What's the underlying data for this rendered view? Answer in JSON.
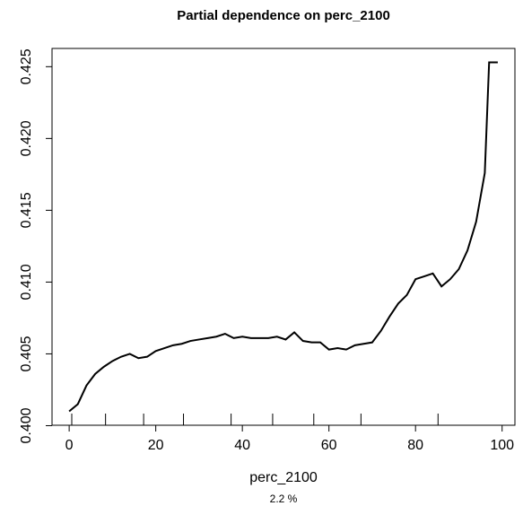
{
  "chart_data": {
    "type": "line",
    "title": "Partial dependence on perc_2100",
    "x_label": "perc_2100",
    "subtitle": "2.2 %",
    "x": [
      0,
      2,
      4,
      6,
      8,
      10,
      12,
      14,
      16,
      18,
      20,
      22,
      24,
      26,
      28,
      30,
      32,
      34,
      36,
      38,
      40,
      42,
      44,
      46,
      48,
      50,
      52,
      54,
      56,
      58,
      60,
      62,
      64,
      66,
      68,
      70,
      72,
      74,
      76,
      78,
      80,
      82,
      84,
      86,
      88,
      90,
      92,
      94,
      96,
      97,
      99
    ],
    "series": [
      {
        "name": "perc_2100",
        "color": "#000000",
        "values": [
          0.401,
          0.4015,
          0.4028,
          0.4036,
          0.4041,
          0.4045,
          0.4048,
          0.405,
          0.4047,
          0.4048,
          0.4052,
          0.4054,
          0.4056,
          0.4057,
          0.4059,
          0.406,
          0.4061,
          0.4062,
          0.4064,
          0.4061,
          0.4062,
          0.4061,
          0.4061,
          0.4061,
          0.4062,
          0.406,
          0.4065,
          0.4059,
          0.4058,
          0.4058,
          0.4053,
          0.4054,
          0.4053,
          0.4056,
          0.4057,
          0.4058,
          0.4066,
          0.4076,
          0.4085,
          0.4091,
          0.4102,
          0.4104,
          0.4106,
          0.4097,
          0.4102,
          0.4109,
          0.4122,
          0.4142,
          0.4176,
          0.4253,
          0.4253
        ]
      }
    ],
    "rug": [
      0.6,
      8.4,
      17.2,
      26.4,
      37.4,
      47.0,
      56.5,
      67.4,
      85.2
    ],
    "xlim": [
      -3.96,
      102.96
    ],
    "xticks": [
      0,
      20,
      40,
      60,
      80,
      100
    ],
    "ylim": [
      0.40003,
      0.42627
    ],
    "yticks": [
      {
        "value": 0.4,
        "label": "0.400"
      },
      {
        "value": 0.405,
        "label": "0.405"
      },
      {
        "value": 0.41,
        "label": "0.410"
      },
      {
        "value": 0.415,
        "label": "0.415"
      },
      {
        "value": 0.42,
        "label": "0.420"
      },
      {
        "value": 0.425,
        "label": "0.425"
      }
    ]
  }
}
